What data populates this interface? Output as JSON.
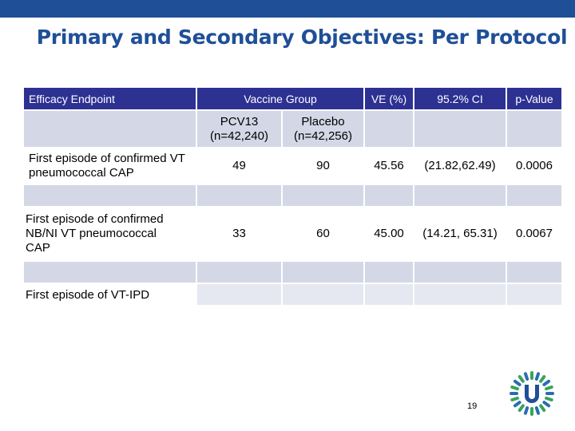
{
  "title": "Primary and Secondary Objectives: Per Protocol",
  "table": {
    "header": [
      "Efficacy Endpoint",
      "Vaccine Group",
      "VE (%)",
      "95.2% CI",
      "p-Value"
    ],
    "subheader": [
      "PCV13 (n=42,240)",
      "Placebo (n=42,256)"
    ],
    "rows": [
      [
        "First episode of confirmed VT pneumococcal CAP",
        "49",
        "90",
        "45.56",
        "(21.82,62.49)",
        "0.0006"
      ],
      [
        "First episode of confirmed NB/NI VT pneumococcal CAP",
        "33",
        "60",
        "45.00",
        "(14.21, 65.31)",
        "0.0067"
      ],
      [
        "First episode of VT-IPD"
      ]
    ]
  },
  "page_number": "19"
}
